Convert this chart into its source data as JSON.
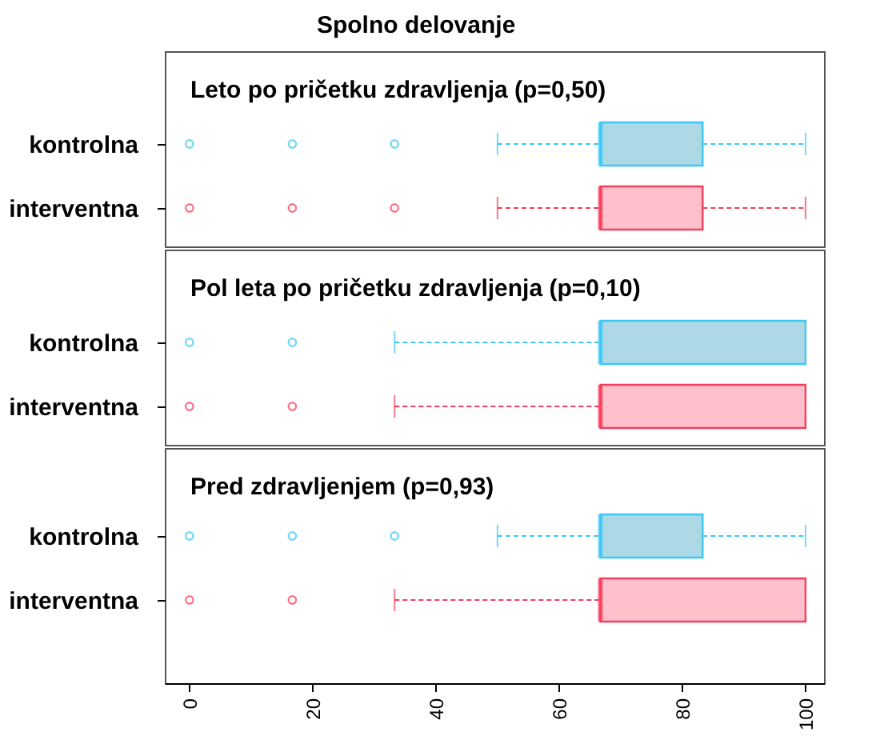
{
  "chart_data": [
    {
      "type": "box",
      "orientation": "horizontal",
      "title": "Spolno delovanje",
      "annotations": [
        "Leto po pričetku zdravljenja (p=0,50)"
      ],
      "categories": [
        "kontrolna",
        "interventna"
      ],
      "colors": [
        "#add8e6",
        "#ffc0cb"
      ],
      "xlim": [
        -4,
        103
      ],
      "xticks": [
        0,
        20,
        40,
        60,
        80,
        100
      ],
      "tick_labels": "y",
      "boxes": [
        {
          "low": 50,
          "q1": 66.7,
          "median": 66.7,
          "q3": 83.3,
          "high": 100,
          "outliers": [
            0,
            16.7,
            33.3
          ]
        },
        {
          "low": 50,
          "q1": 66.7,
          "median": 66.7,
          "q3": 83.3,
          "high": 100,
          "outliers": [
            0,
            16.7,
            33.3
          ]
        }
      ]
    },
    {
      "type": "box",
      "orientation": "horizontal",
      "annotations": [
        "Pol leta po pričetku zdravljenja (p=0,10)"
      ],
      "categories": [
        "kontrolna",
        "interventna"
      ],
      "colors": [
        "#add8e6",
        "#ffc0cb"
      ],
      "xlim": [
        -4,
        103
      ],
      "xticks": [
        0,
        20,
        40,
        60,
        80,
        100
      ],
      "tick_labels": "y",
      "boxes": [
        {
          "low": 33.3,
          "q1": 66.7,
          "median": 66.7,
          "q3": 100,
          "high": 100,
          "outliers": [
            0,
            16.7
          ]
        },
        {
          "low": 33.3,
          "q1": 66.7,
          "median": 66.7,
          "q3": 100,
          "high": 100,
          "outliers": [
            0,
            16.7
          ]
        }
      ]
    },
    {
      "type": "box",
      "orientation": "horizontal",
      "annotations": [
        "Pred zdravljenjem (p=0,93)"
      ],
      "categories": [
        "kontrolna",
        "interventna"
      ],
      "colors": [
        "#add8e6",
        "#ffc0cb"
      ],
      "xlim": [
        -4,
        103
      ],
      "xticks": [
        0,
        20,
        40,
        60,
        80,
        100
      ],
      "boxes": [
        {
          "low": 50,
          "q1": 66.7,
          "median": 66.7,
          "q3": 83.3,
          "high": 100,
          "outliers": [
            0,
            16.7,
            33.3
          ]
        },
        {
          "low": 33.3,
          "q1": 66.7,
          "median": 66.7,
          "q3": 100,
          "high": 100,
          "outliers": [
            0,
            16.7
          ]
        }
      ]
    }
  ]
}
